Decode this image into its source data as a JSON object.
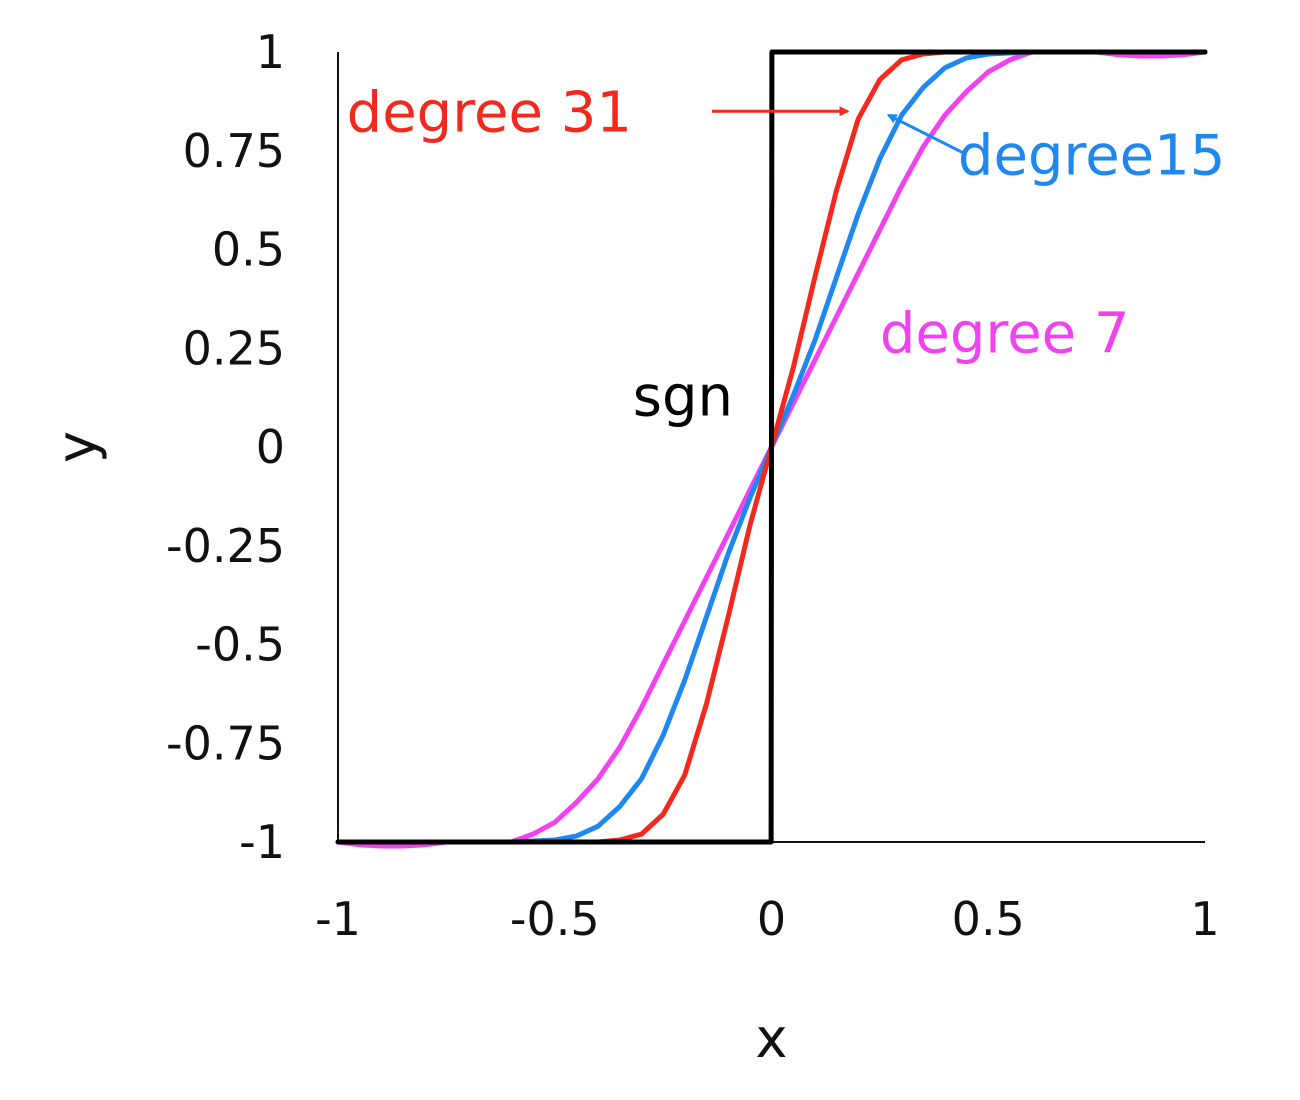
{
  "chart_data": {
    "type": "line",
    "xlabel": "x",
    "ylabel": "y",
    "xlim": [
      -1,
      1
    ],
    "ylim": [
      -1,
      1
    ],
    "xticks": [
      "-1",
      "-0.5",
      "0",
      "0.5",
      "1"
    ],
    "yticks": [
      "1",
      "0.75",
      "0.5",
      "0.25",
      "0",
      "-0.25",
      "-0.5",
      "-0.75",
      "-1"
    ],
    "grid": false,
    "legend": "none (inline annotations)",
    "series": [
      {
        "name": "sgn",
        "color": "#000000",
        "x": [
          -1,
          -0.001,
          0.001,
          1
        ],
        "y": [
          -1,
          -1,
          1,
          1
        ]
      },
      {
        "name": "degree 7",
        "color": "#f043f0",
        "x": [
          -1,
          -0.95,
          -0.9,
          -0.85,
          -0.8,
          -0.75,
          -0.7,
          -0.65,
          -0.6,
          -0.55,
          -0.5,
          -0.45,
          -0.4,
          -0.35,
          -0.3,
          -0.25,
          -0.2,
          -0.15,
          -0.1,
          -0.05,
          0,
          0.05,
          0.1,
          0.15,
          0.2,
          0.25,
          0.3,
          0.35,
          0.4,
          0.45,
          0.5,
          0.55,
          0.6,
          0.65,
          0.7,
          0.75,
          0.8,
          0.85,
          0.9,
          0.95,
          1
        ],
        "y": [
          -1,
          -1.007,
          -1.01,
          -1.01,
          -1.007,
          -1.0,
          -1.0,
          -1.0,
          -1.0,
          -0.98,
          -0.95,
          -0.9,
          -0.84,
          -0.76,
          -0.66,
          -0.55,
          -0.44,
          -0.33,
          -0.22,
          -0.11,
          0,
          0.11,
          0.22,
          0.33,
          0.44,
          0.55,
          0.66,
          0.76,
          0.84,
          0.9,
          0.95,
          0.98,
          1.0,
          1.0,
          1.0,
          1.0,
          0.993,
          0.99,
          0.99,
          0.993,
          1
        ]
      },
      {
        "name": "degree15",
        "color": "#1e88f0",
        "x": [
          -1,
          -0.8,
          -0.6,
          -0.5,
          -0.45,
          -0.4,
          -0.35,
          -0.3,
          -0.25,
          -0.2,
          -0.15,
          -0.1,
          -0.05,
          0,
          0.05,
          0.1,
          0.15,
          0.2,
          0.25,
          0.3,
          0.35,
          0.4,
          0.45,
          0.5,
          0.6,
          0.8,
          1
        ],
        "y": [
          -1,
          -1,
          -1,
          -0.995,
          -0.985,
          -0.96,
          -0.91,
          -0.84,
          -0.73,
          -0.59,
          -0.43,
          -0.27,
          -0.13,
          0,
          0.13,
          0.27,
          0.43,
          0.59,
          0.73,
          0.84,
          0.91,
          0.96,
          0.985,
          0.995,
          1,
          1,
          1
        ]
      },
      {
        "name": "degree 31",
        "color": "#f2291e",
        "x": [
          -1,
          -0.6,
          -0.4,
          -0.35,
          -0.3,
          -0.25,
          -0.2,
          -0.15,
          -0.1,
          -0.05,
          0,
          0.05,
          0.1,
          0.15,
          0.2,
          0.25,
          0.3,
          0.35,
          0.4,
          0.6,
          1
        ],
        "y": [
          -1,
          -1,
          -1,
          -0.995,
          -0.98,
          -0.93,
          -0.83,
          -0.65,
          -0.43,
          -0.2,
          0,
          0.2,
          0.43,
          0.65,
          0.83,
          0.93,
          0.98,
          0.995,
          1,
          1,
          1
        ]
      }
    ],
    "annotations": [
      {
        "text": "degree 31",
        "color": "#f2291e",
        "x": -0.98,
        "y": 0.85,
        "arrow_to": [
          0.18,
          0.85
        ]
      },
      {
        "text": "degree15",
        "color": "#1e88f0",
        "x": 0.43,
        "y": 0.74,
        "arrow_to": [
          0.27,
          0.84
        ]
      },
      {
        "text": "degree 7",
        "color": "#f043f0",
        "x": 0.25,
        "y": 0.29
      },
      {
        "text": "sgn",
        "color": "#000000",
        "x": -0.32,
        "y": 0.13
      }
    ]
  }
}
